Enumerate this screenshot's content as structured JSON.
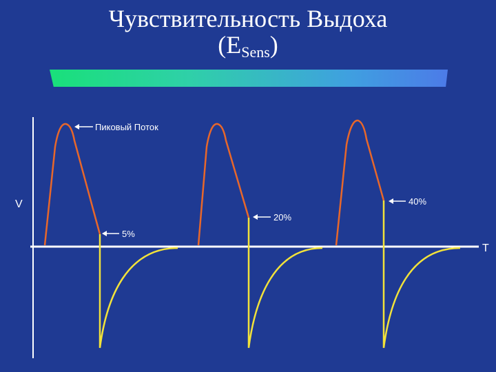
{
  "slide": {
    "title_line1": "Чувствительность Выдоха",
    "title_prefix": "(E",
    "title_sub": "Sens",
    "title_suffix": ")"
  },
  "diagram": {
    "y_axis_label": "V",
    "x_axis_label": "T",
    "annotations": {
      "peak_flow": "Пиковый Поток",
      "threshold_5": "5%",
      "threshold_20": "20%",
      "threshold_40": "40%"
    },
    "colors": {
      "background": "#1f3a93",
      "inspiratory_curve": "#e8672a",
      "expiratory_curve": "#f2e23a",
      "axes": "#ffffff"
    }
  }
}
